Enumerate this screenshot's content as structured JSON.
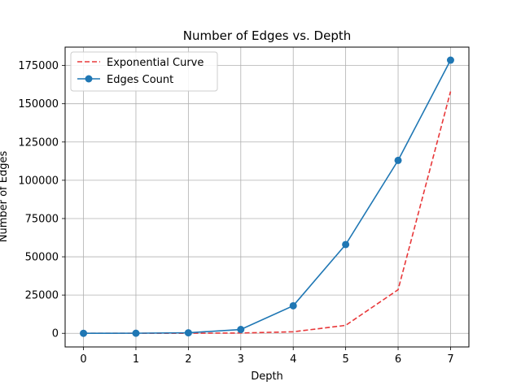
{
  "chart_data": {
    "type": "line",
    "title": "Number of Edges vs. Depth",
    "xlabel": "Depth",
    "ylabel": "Number of Edges",
    "x": [
      0,
      1,
      2,
      3,
      4,
      5,
      6,
      7
    ],
    "xlim": [
      -0.35,
      7.35
    ],
    "ylim": [
      -8900,
      187000
    ],
    "xticks": [
      "0",
      "1",
      "2",
      "3",
      "4",
      "5",
      "6",
      "7"
    ],
    "yticks": [
      {
        "value": 0,
        "label": "0"
      },
      {
        "value": 25000,
        "label": "25000"
      },
      {
        "value": 50000,
        "label": "50000"
      },
      {
        "value": 75000,
        "label": "75000"
      },
      {
        "value": 100000,
        "label": "100000"
      },
      {
        "value": 125000,
        "label": "125000"
      },
      {
        "value": 150000,
        "label": "150000"
      },
      {
        "value": 175000,
        "label": "175000"
      }
    ],
    "grid": true,
    "legend_position": "top-left",
    "series": [
      {
        "name": "Exponential Curve",
        "style": "dashed",
        "color": "#e8383a",
        "marker": "none",
        "values": [
          1,
          7,
          55,
          200,
          1000,
          5200,
          28500,
          158000
        ]
      },
      {
        "name": "Edges Count",
        "style": "solid",
        "color": "#1f77b4",
        "marker": "circle",
        "values": [
          10,
          60,
          350,
          2500,
          18000,
          58000,
          113000,
          178500
        ]
      }
    ]
  }
}
